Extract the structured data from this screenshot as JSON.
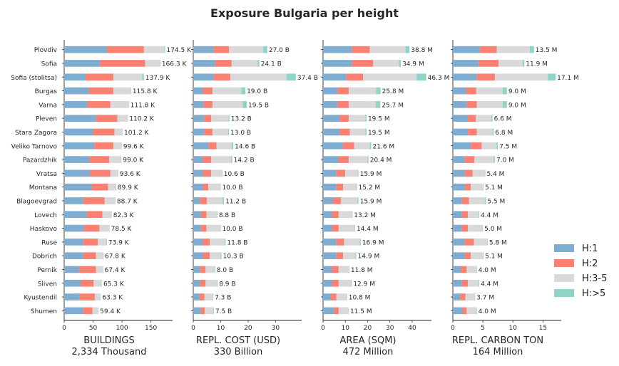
{
  "title": "Exposure Bulgaria per height",
  "chart_data": {
    "type": "bar",
    "orientation": "horizontal",
    "stacked": true,
    "categories": [
      "Plovdiv",
      "Sofia",
      "Sofia (stolitsa)",
      "Burgas",
      "Varna",
      "Pleven",
      "Stara Zagora",
      "Veliko Tarnovo",
      "Pazardzhik",
      "Vratsa",
      "Montana",
      "Blagoevgrad",
      "Lovech",
      "Haskovo",
      "Ruse",
      "Dobrich",
      "Pernik",
      "Sliven",
      "Kyustendil",
      "Shumen"
    ],
    "legend": {
      "position": "right",
      "entries": [
        {
          "name": "H:1",
          "color": "#7eadd1"
        },
        {
          "name": "H:2",
          "color": "#fa8072"
        },
        {
          "name": "H:3-5",
          "color": "#d9d9d9"
        },
        {
          "name": "H:>5",
          "color": "#8fd4c8"
        }
      ]
    },
    "panels": [
      {
        "xlabel": "BUILDINGS",
        "subtitle": "2,334 Thousand",
        "xlim": [
          0,
          185
        ],
        "xticks": [
          0,
          50,
          100,
          150
        ],
        "labels": [
          "174.5 K",
          "166.3 K",
          "137.9 K",
          "115.8 K",
          "111.8 K",
          "110.2 K",
          "101.2 K",
          "99.6 K",
          "99.0 K",
          "93.6 K",
          "89.9 K",
          "88.7 K",
          "82.3 K",
          "78.5 K",
          "73.9 K",
          "67.8 K",
          "67.4 K",
          "65.3 K",
          "63.3 K",
          "59.4 K"
        ],
        "series": [
          {
            "name": "H:1",
            "values": [
              74,
              62,
              37,
              43,
              40,
              55,
              50,
              52,
              44,
              45,
              48,
              33,
              39,
              34,
              33,
              33,
              26,
              29,
              27,
              33
            ]
          },
          {
            "name": "H:2",
            "values": [
              64,
              78,
              48,
              42,
              40,
              37,
              37,
              33,
              34,
              35,
              28,
              37,
              27,
              27,
              25,
              22,
              29,
              22,
              26,
              16
            ]
          },
          {
            "name": "H:3-5",
            "values": [
              35,
              25,
              50,
              30,
              31,
              18,
              14,
              14,
              20,
              13,
              13,
              18,
              16,
              17,
              15,
              12,
              12,
              14,
              10,
              10
            ]
          },
          {
            "name": "H:>5",
            "values": [
              1.5,
              1.3,
              2.9,
              0.8,
              0.8,
              0.2,
              0.2,
              0.6,
              1.0,
              0.6,
              0.9,
              0.7,
              0.3,
              0.5,
              0.9,
              0.8,
              0.4,
              0.3,
              0.3,
              0.4
            ]
          }
        ]
      },
      {
        "xlabel": "REPL. COST (USD)",
        "subtitle": "330 Billion",
        "xlim": [
          0,
          39
        ],
        "xticks": [
          0,
          10,
          20,
          30
        ],
        "labels": [
          "27.0 B",
          "24.1 B",
          "37.4 B",
          "19.0 B",
          "19.5 B",
          "13.2 B",
          "13.0 B",
          "14.6 B",
          "14.2 B",
          "10.6 B",
          "10.0 B",
          "11.2 B",
          "8.8 B",
          "10.0 B",
          "11.8 B",
          "10.3 B",
          "8.0 B",
          "8.9 B",
          "7.3 B",
          "7.5 B"
        ],
        "series": [
          {
            "name": "H:1",
            "values": [
              7.5,
              8.0,
              7.5,
              3.5,
              3.8,
              4.0,
              4.0,
              5.5,
              3.5,
              3.5,
              3.5,
              2.5,
              2.8,
              2.8,
              3.5,
              3.5,
              2.5,
              2.5,
              2.3,
              2.7
            ]
          },
          {
            "name": "H:2",
            "values": [
              5.5,
              6.0,
              6.0,
              3.5,
              3.2,
              2.5,
              3.0,
              3.0,
              3.0,
              3.0,
              2.0,
              2.5,
              2.0,
              2.0,
              2.5,
              2.5,
              2.0,
              2.0,
              1.8,
              1.5
            ]
          },
          {
            "name": "H:3-5",
            "values": [
              12.5,
              9.5,
              20.5,
              10.5,
              11.0,
              6.4,
              5.7,
              5.5,
              7.3,
              3.9,
              4.3,
              5.7,
              3.8,
              5.0,
              5.5,
              4.0,
              3.3,
              4.2,
              3.0,
              3.1
            ]
          },
          {
            "name": "H:>5",
            "values": [
              1.5,
              0.6,
              3.4,
              1.5,
              1.5,
              0.3,
              0.3,
              0.6,
              0.4,
              0.2,
              0.2,
              0.5,
              0.2,
              0.2,
              0.3,
              0.3,
              0.2,
              0.2,
              0.2,
              0.2
            ]
          }
        ]
      },
      {
        "xlabel": "AREA (SQM)",
        "subtitle": "472 Million",
        "xlim": [
          0,
          48
        ],
        "xticks": [
          0,
          10,
          20,
          30,
          40
        ],
        "labels": [
          "38.8 M",
          "34.9 M",
          "46.3 M",
          "25.8 M",
          "25.7 M",
          "19.5 M",
          "19.5 M",
          "21.6 M",
          "20.4 M",
          "15.9 M",
          "15.2 M",
          "15.9 M",
          "13.2 M",
          "14.4 M",
          "16.9 M",
          "14.9 M",
          "11.8 M",
          "12.9 M",
          "10.8 M",
          "11.5 M"
        ],
        "series": [
          {
            "name": "H:1",
            "values": [
              13.0,
              13.0,
              10.5,
              6.5,
              6.5,
              7.5,
              7.5,
              9.0,
              7.0,
              6.0,
              6.0,
              4.5,
              4.0,
              4.0,
              6.0,
              6.0,
              4.0,
              4.0,
              3.5,
              5.0
            ]
          },
          {
            "name": "H:2",
            "values": [
              8.0,
              9.5,
              7.5,
              5.0,
              5.0,
              4.0,
              4.5,
              5.0,
              4.5,
              4.0,
              3.0,
              3.5,
              3.0,
              3.0,
              3.5,
              3.0,
              3.0,
              3.0,
              2.5,
              2.0
            ]
          },
          {
            "name": "H:3-5",
            "values": [
              16.0,
              11.5,
              24.0,
              12.3,
              12.2,
              7.5,
              7.0,
              7.0,
              8.4,
              5.6,
              5.9,
              7.4,
              6.0,
              7.2,
              7.0,
              5.6,
              4.6,
              5.6,
              4.6,
              4.3
            ]
          },
          {
            "name": "H:>5",
            "values": [
              1.8,
              0.9,
              4.3,
              2.0,
              2.0,
              0.5,
              0.5,
              0.6,
              0.5,
              0.3,
              0.3,
              0.5,
              0.2,
              0.2,
              0.4,
              0.3,
              0.2,
              0.3,
              0.2,
              0.2
            ]
          }
        ]
      },
      {
        "xlabel": "REPL. CARBON TON",
        "subtitle": "164 Million",
        "xlim": [
          0,
          17.8
        ],
        "xticks": [
          0,
          5,
          10,
          15
        ],
        "labels": [
          "13.5 M",
          "11.9 M",
          "17.1 M",
          "9.0 M",
          "9.0 M",
          "6.6 M",
          "6.8 M",
          "7.5 M",
          "7.0 M",
          "5.4 M",
          "5.1 M",
          "5.5 M",
          "4.4 M",
          "5.0 M",
          "5.8 M",
          "5.1 M",
          "4.0 M",
          "4.4 M",
          "3.7 M",
          "4.0 M"
        ],
        "series": [
          {
            "name": "H:1",
            "values": [
              4.5,
              4.3,
              4.0,
              2.2,
              2.3,
              2.5,
              2.5,
              3.0,
              2.0,
              2.0,
              2.0,
              1.5,
              1.5,
              1.5,
              2.0,
              2.0,
              1.3,
              1.5,
              1.2,
              1.6
            ]
          },
          {
            "name": "H:2",
            "values": [
              2.8,
              3.3,
              3.0,
              1.7,
              1.7,
              1.3,
              1.5,
              1.8,
              1.6,
              1.3,
              1.0,
              1.2,
              1.0,
              1.0,
              1.5,
              1.0,
              1.0,
              1.0,
              0.9,
              0.7
            ]
          },
          {
            "name": "H:3-5",
            "values": [
              5.5,
              4.0,
              8.8,
              4.4,
              4.3,
              2.6,
              2.6,
              2.5,
              3.2,
              2.0,
              2.0,
              2.6,
              1.8,
              2.4,
              2.2,
              2.0,
              1.6,
              1.8,
              1.5,
              1.6
            ]
          },
          {
            "name": "H:>5",
            "values": [
              0.7,
              0.3,
              1.3,
              0.7,
              0.7,
              0.2,
              0.2,
              0.2,
              0.2,
              0.1,
              0.1,
              0.2,
              0.1,
              0.1,
              0.1,
              0.1,
              0.1,
              0.1,
              0.1,
              0.1
            ]
          }
        ]
      }
    ]
  }
}
